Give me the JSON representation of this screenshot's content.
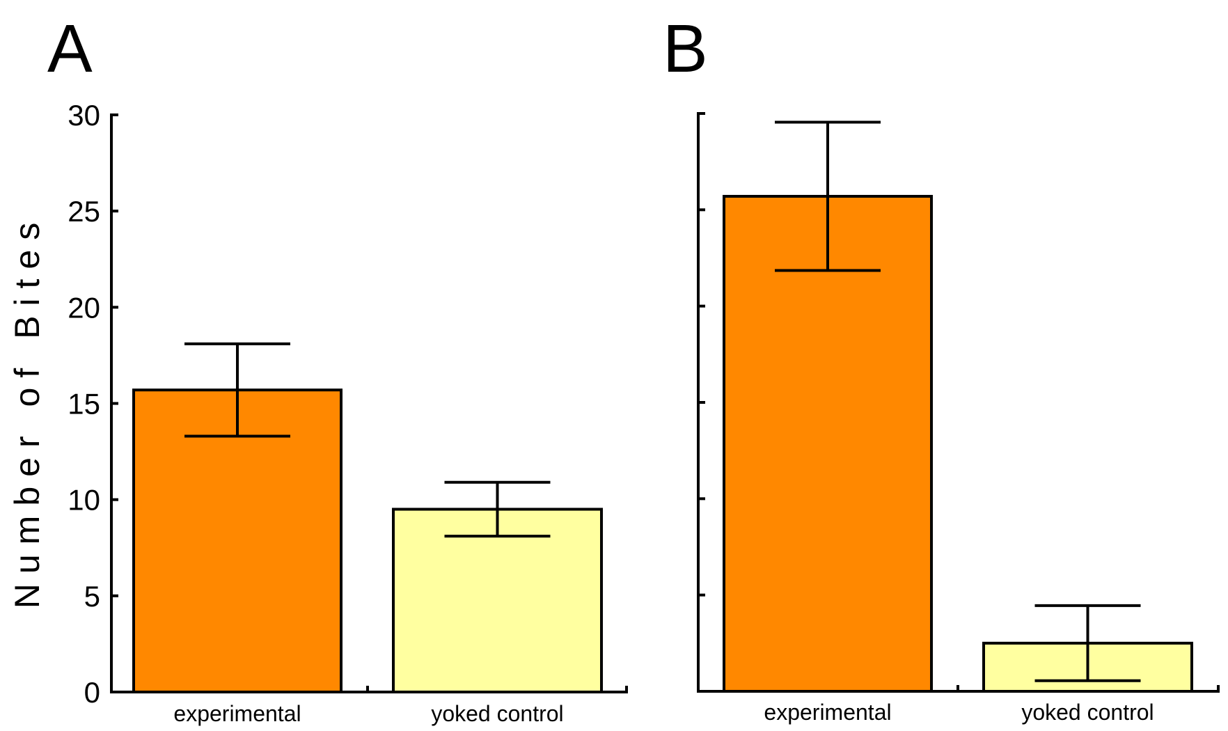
{
  "chart_data": [
    {
      "type": "bar",
      "panel_label": "A",
      "title": "",
      "xlabel": "",
      "ylabel": "Number of Bites",
      "ylim": [
        0,
        30
      ],
      "yticks": [
        0,
        5,
        10,
        15,
        20,
        25,
        30
      ],
      "ytick_labels_shown": true,
      "grid": false,
      "categories": [
        "experimental",
        "yoked control"
      ],
      "values": [
        15.7,
        9.5
      ],
      "error": [
        2.4,
        1.4
      ],
      "colors": [
        "#FF8800",
        "#FFFFA0"
      ]
    },
    {
      "type": "bar",
      "panel_label": "B",
      "title": "",
      "xlabel": "",
      "ylabel": "",
      "ylim": [
        0,
        30
      ],
      "yticks": [
        0,
        5,
        10,
        15,
        20,
        25,
        30
      ],
      "ytick_labels_shown": false,
      "grid": false,
      "categories": [
        "experimental",
        "yoked control"
      ],
      "values": [
        25.7,
        2.5
      ],
      "error": [
        3.85,
        1.95
      ],
      "colors": [
        "#FF8800",
        "#FFFFA0"
      ]
    }
  ]
}
